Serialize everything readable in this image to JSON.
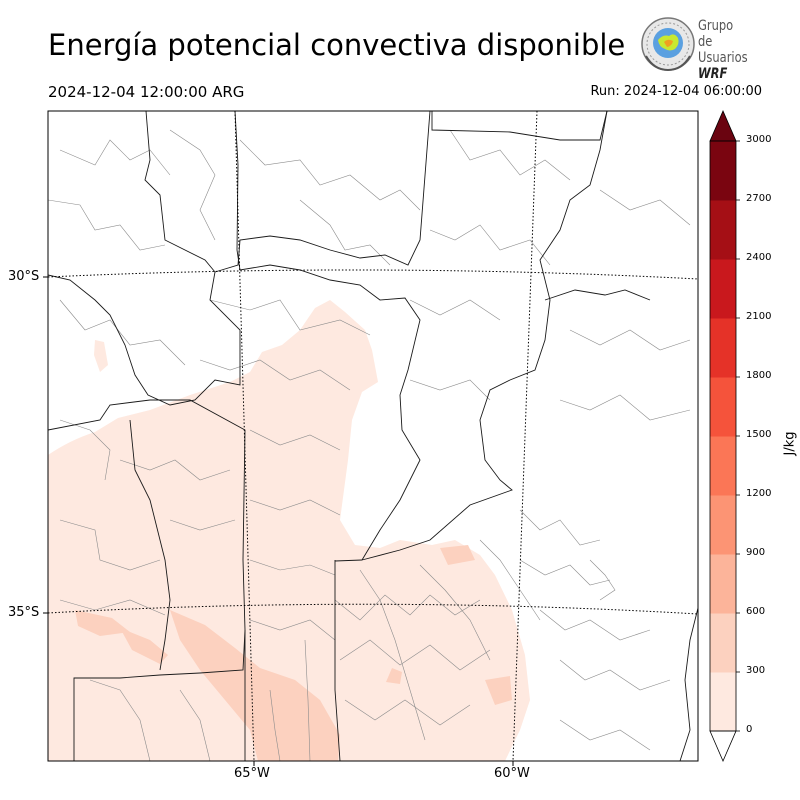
{
  "header": {
    "title": "Energía potencial convectiva disponible",
    "valid_time": "2024-12-04 12:00:00 ARG",
    "run_time": "Run: 2024-12-04 06:00:00"
  },
  "logo": {
    "line1": "Grupo de",
    "line2": "Usuarios",
    "line3": "WRF",
    "icon": "globe-seal-icon"
  },
  "map": {
    "lat_labels": [
      "30°S",
      "35°S"
    ],
    "lon_labels": [
      "65°W",
      "60°W"
    ],
    "border_color": "#000000",
    "department_line_color": "#8c8c8c"
  },
  "colorbar": {
    "units": "J/kg",
    "levels": [
      0,
      300,
      600,
      900,
      1200,
      1500,
      1800,
      2100,
      2400,
      2700,
      3000
    ],
    "colors": [
      "#fee9e0",
      "#fcd1bf",
      "#fcb49a",
      "#fc9474",
      "#fb7656",
      "#f5533b",
      "#e53228",
      "#c9181d",
      "#a50f15",
      "#7a0510"
    ],
    "extend_max_color": "#6a0410",
    "extend_min_color": "#ffffff"
  }
}
